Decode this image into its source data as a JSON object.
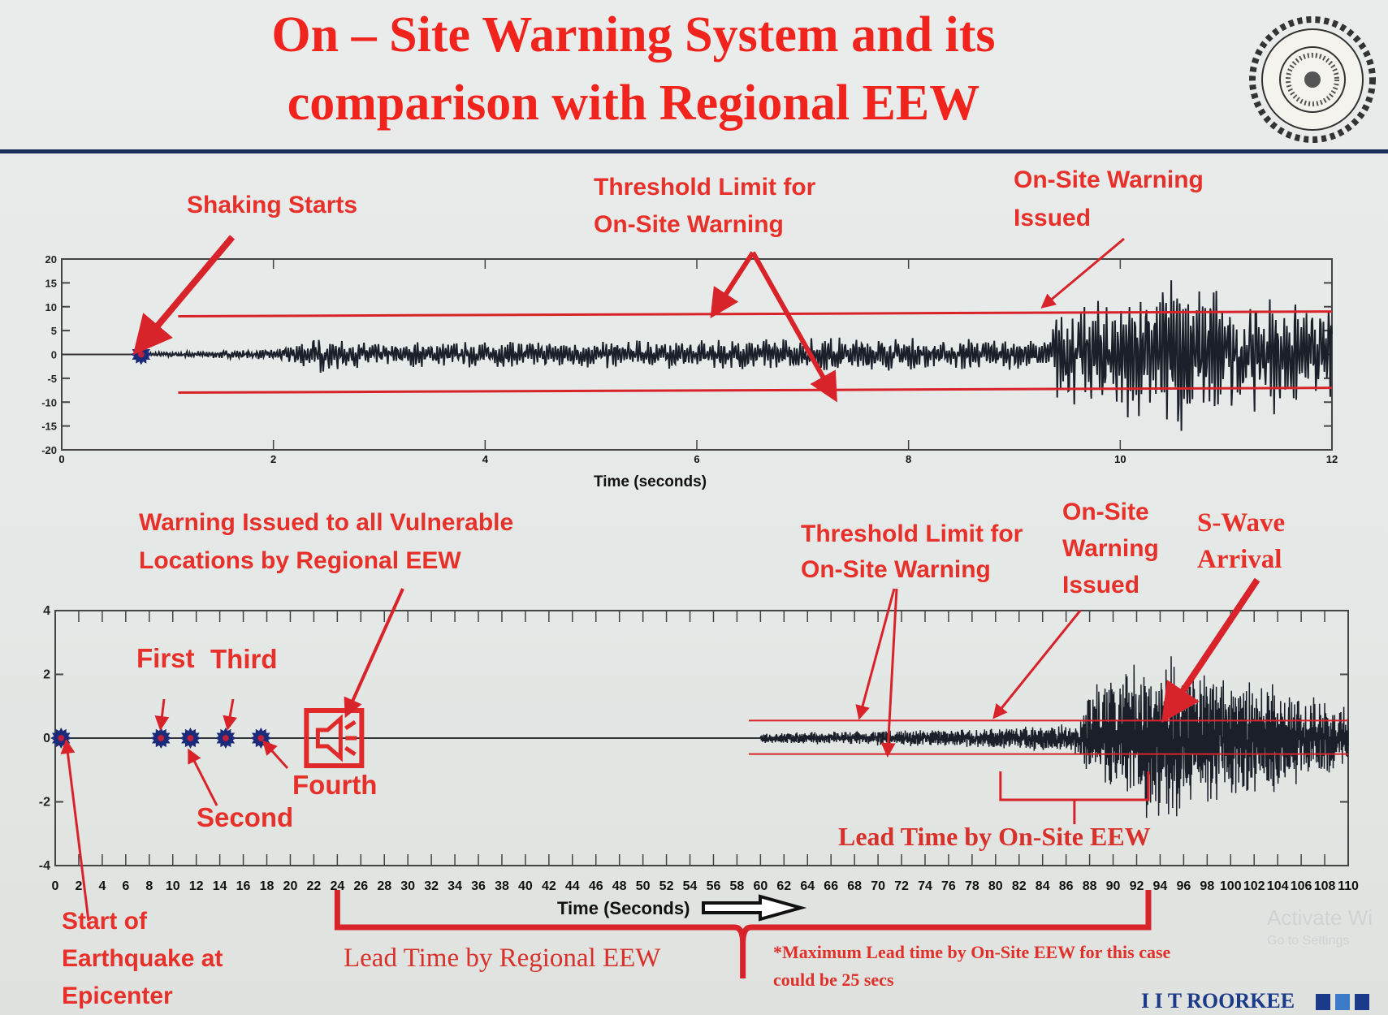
{
  "slide": {
    "title_line1": "On – Site Warning System and its",
    "title_line2": "comparison with Regional EEW",
    "footer_brand": "I I T ROORKEE",
    "watermark_line1": "Activate Wi",
    "watermark_line2": "Go to Settings",
    "accent_color": "#e8262a",
    "brand_color": "#1b2d5a"
  },
  "annotations_top": {
    "shaking_starts": "Shaking Starts",
    "threshold_line1": "Threshold Limit for",
    "threshold_line2": "On-Site Warning",
    "onsite_issued_line1": "On-Site Warning",
    "onsite_issued_line2": "Issued"
  },
  "annotations_bottom": {
    "regional_line1": "Warning Issued to all Vulnerable",
    "regional_line2": "Locations by Regional EEW",
    "first": "First",
    "second": "Second",
    "third": "Third",
    "fourth": "Fourth",
    "threshold_line1": "Threshold Limit for",
    "threshold_line2": "On-Site Warning",
    "onsite_line1": "On-Site",
    "onsite_line2": "Warning",
    "onsite_line3": "Issued",
    "swave_line1": "S-Wave",
    "swave_line2": "Arrival",
    "lead_onsite": "Lead Time by On-Site EEW",
    "start_line1": "Start of",
    "start_line2": "Earthquake at",
    "start_line3": "Epicenter",
    "lead_regional": "Lead Time by Regional EEW",
    "note_line1": "*Maximum Lead time by On-Site EEW for this case",
    "note_line2": "could be 25 secs"
  },
  "chart_data": [
    {
      "type": "line",
      "xlabel": "Time (seconds)",
      "ylabel": "",
      "xlim": [
        0,
        12
      ],
      "ylim": [
        -20,
        20
      ],
      "xticks": [
        0,
        2,
        4,
        6,
        8,
        10,
        12
      ],
      "yticks": [
        20,
        15,
        10,
        5,
        0,
        -5,
        -10,
        -15,
        -20
      ],
      "thresholds": [
        8,
        -8
      ],
      "shaking_start": 0.75,
      "warning_issued": 9.4,
      "amplitude_envelope": [
        [
          0.75,
          0.5
        ],
        [
          2,
          1
        ],
        [
          2.4,
          4
        ],
        [
          3,
          2.5
        ],
        [
          6,
          3
        ],
        [
          7.5,
          3.5
        ],
        [
          9.3,
          3
        ],
        [
          9.4,
          10
        ],
        [
          10,
          12
        ],
        [
          10.5,
          17
        ],
        [
          11,
          14
        ],
        [
          12,
          10
        ]
      ],
      "line_color": "#1a1f2a",
      "threshold_color": "#d8232a"
    },
    {
      "type": "line",
      "xlabel": "Time (Seconds)",
      "ylabel": "",
      "xlim": [
        0,
        110
      ],
      "ylim": [
        -4,
        4
      ],
      "xticks": [
        0,
        2,
        4,
        6,
        8,
        10,
        12,
        14,
        16,
        18,
        20,
        22,
        24,
        26,
        28,
        30,
        32,
        34,
        36,
        38,
        40,
        42,
        44,
        46,
        48,
        50,
        52,
        54,
        56,
        58,
        60,
        62,
        64,
        66,
        68,
        70,
        72,
        74,
        76,
        78,
        80,
        82,
        84,
        86,
        88,
        90,
        92,
        94,
        96,
        98,
        100,
        102,
        104,
        106,
        108,
        110
      ],
      "yticks": [
        4,
        2,
        0,
        -2,
        -4
      ],
      "thresholds": [
        0.55,
        -0.5
      ],
      "station_markers": [
        0.5,
        9,
        11.5,
        14.5,
        17.5
      ],
      "regional_warning_time": 24,
      "waveform_start": 60,
      "onsite_warning_time": 80,
      "swave_arrival": 93,
      "amplitude_envelope": [
        [
          60,
          0.15
        ],
        [
          80,
          0.3
        ],
        [
          87,
          0.5
        ],
        [
          88,
          1.6
        ],
        [
          94,
          2.6
        ],
        [
          98,
          2.2
        ],
        [
          105,
          1.5
        ],
        [
          110,
          1
        ]
      ],
      "lead_time_regional": [
        24,
        93
      ],
      "lead_time_onsite": [
        80,
        93
      ]
    }
  ]
}
